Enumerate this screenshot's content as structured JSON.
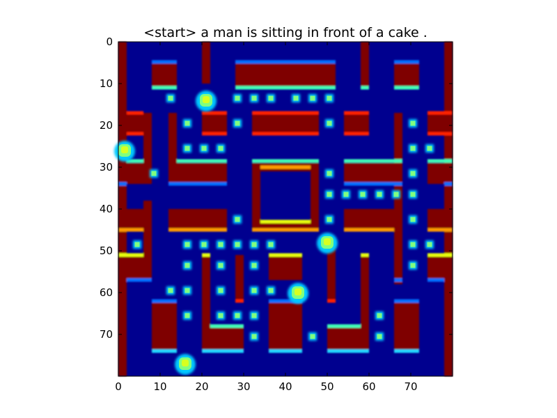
{
  "figure": {
    "title": "<start> a man is sitting in front of a cake ."
  },
  "chart_data": {
    "type": "heatmap",
    "title": "<start> a man is sitting in front of a cake .",
    "xlabel": "",
    "ylabel": "",
    "xlim": [
      0,
      80
    ],
    "ylim": [
      80,
      0
    ],
    "x_ticks": [
      "0",
      "10",
      "20",
      "30",
      "40",
      "50",
      "60",
      "70"
    ],
    "y_ticks": [
      "0",
      "10",
      "20",
      "30",
      "40",
      "50",
      "60",
      "70"
    ],
    "colormap": "jet",
    "grid": false,
    "colors": {
      "background": "#00008f",
      "wall": "#7f0000",
      "wall_edge_red": "#ff2000",
      "wall_edge_orange": "#ff9a00",
      "wall_edge_yellow": "#e8ff10",
      "wall_edge_cyan": "#20d8ff",
      "wall_edge_aqua": "#40ffb8",
      "wall_edge_blue": "#0070ff",
      "pellet": "#80ff80",
      "pellet_glow": "#00c8ff",
      "sprite": "#d8ff20"
    },
    "walls": [
      {
        "x": [
          0,
          2
        ],
        "y": [
          0,
          80
        ]
      },
      {
        "x": [
          78,
          80
        ],
        "y": [
          0,
          80
        ]
      },
      {
        "x": [
          8,
          14
        ],
        "y": [
          5,
          11
        ]
      },
      {
        "x": [
          20,
          22
        ],
        "y": [
          0,
          10
        ]
      },
      {
        "x": [
          28,
          52
        ],
        "y": [
          5,
          11
        ]
      },
      {
        "x": [
          58,
          60
        ],
        "y": [
          0,
          11
        ]
      },
      {
        "x": [
          66,
          72
        ],
        "y": [
          5,
          11
        ]
      },
      {
        "x": [
          2,
          6
        ],
        "y": [
          17,
          22
        ]
      },
      {
        "x": [
          20,
          26
        ],
        "y": [
          17,
          22
        ]
      },
      {
        "x": [
          32,
          48
        ],
        "y": [
          17,
          22
        ]
      },
      {
        "x": [
          54,
          60
        ],
        "y": [
          17,
          22
        ]
      },
      {
        "x": [
          66,
          68
        ],
        "y": [
          17,
          58
        ]
      },
      {
        "x": [
          74,
          78
        ],
        "y": [
          17,
          22
        ]
      },
      {
        "x": [
          6,
          8
        ],
        "y": [
          17,
          34
        ]
      },
      {
        "x": [
          2,
          6
        ],
        "y": [
          29,
          34
        ]
      },
      {
        "x": [
          12,
          14
        ],
        "y": [
          17,
          34
        ]
      },
      {
        "x": [
          14,
          26
        ],
        "y": [
          29,
          34
        ]
      },
      {
        "x": [
          32,
          48
        ],
        "y": [
          29,
          31
        ]
      },
      {
        "x": [
          32,
          34
        ],
        "y": [
          29,
          45
        ]
      },
      {
        "x": [
          46,
          48
        ],
        "y": [
          29,
          45
        ]
      },
      {
        "x": [
          32,
          48
        ],
        "y": [
          43,
          45
        ]
      },
      {
        "x": [
          54,
          68
        ],
        "y": [
          29,
          34
        ]
      },
      {
        "x": [
          74,
          78
        ],
        "y": [
          29,
          34
        ]
      },
      {
        "x": [
          6,
          8
        ],
        "y": [
          38,
          57
        ]
      },
      {
        "x": [
          2,
          6
        ],
        "y": [
          40,
          45
        ]
      },
      {
        "x": [
          12,
          26
        ],
        "y": [
          40,
          45
        ]
      },
      {
        "x": [
          54,
          66
        ],
        "y": [
          40,
          45
        ]
      },
      {
        "x": [
          74,
          78
        ],
        "y": [
          40,
          45
        ]
      },
      {
        "x": [
          2,
          6
        ],
        "y": [
          51,
          57
        ]
      },
      {
        "x": [
          20,
          22
        ],
        "y": [
          51,
          68
        ]
      },
      {
        "x": [
          28,
          30
        ],
        "y": [
          51,
          62
        ]
      },
      {
        "x": [
          36,
          44
        ],
        "y": [
          51,
          57
        ]
      },
      {
        "x": [
          50,
          52
        ],
        "y": [
          48,
          62
        ]
      },
      {
        "x": [
          58,
          60
        ],
        "y": [
          51,
          68
        ]
      },
      {
        "x": [
          74,
          78
        ],
        "y": [
          51,
          57
        ]
      },
      {
        "x": [
          8,
          14
        ],
        "y": [
          62,
          74
        ]
      },
      {
        "x": [
          20,
          30
        ],
        "y": [
          68,
          74
        ]
      },
      {
        "x": [
          36,
          44
        ],
        "y": [
          62,
          74
        ]
      },
      {
        "x": [
          50,
          60
        ],
        "y": [
          68,
          74
        ]
      },
      {
        "x": [
          66,
          72
        ],
        "y": [
          62,
          74
        ]
      }
    ],
    "edges": [
      {
        "x": [
          8,
          14
        ],
        "y": 4.8,
        "c": "wall_edge_blue"
      },
      {
        "x": [
          8,
          14
        ],
        "y": 11,
        "c": "wall_edge_aqua"
      },
      {
        "x": [
          28,
          52
        ],
        "y": 4.8,
        "c": "wall_edge_blue"
      },
      {
        "x": [
          28,
          52
        ],
        "y": 11,
        "c": "wall_edge_aqua"
      },
      {
        "x": [
          66,
          72
        ],
        "y": 4.8,
        "c": "wall_edge_blue"
      },
      {
        "x": [
          66,
          72
        ],
        "y": 11,
        "c": "wall_edge_aqua"
      },
      {
        "x": [
          58,
          60
        ],
        "y": 11,
        "c": "wall_edge_aqua"
      },
      {
        "x": [
          2,
          6
        ],
        "y": 17,
        "c": "wall_edge_red"
      },
      {
        "x": [
          2,
          6
        ],
        "y": 22,
        "c": "wall_edge_red"
      },
      {
        "x": [
          20,
          26
        ],
        "y": 17,
        "c": "wall_edge_red"
      },
      {
        "x": [
          20,
          26
        ],
        "y": 22,
        "c": "wall_edge_red"
      },
      {
        "x": [
          32,
          48
        ],
        "y": 17,
        "c": "wall_edge_red"
      },
      {
        "x": [
          32,
          48
        ],
        "y": 22,
        "c": "wall_edge_red"
      },
      {
        "x": [
          54,
          60
        ],
        "y": 17,
        "c": "wall_edge_red"
      },
      {
        "x": [
          54,
          60
        ],
        "y": 22,
        "c": "wall_edge_red"
      },
      {
        "x": [
          74,
          80
        ],
        "y": 17,
        "c": "wall_edge_red"
      },
      {
        "x": [
          74,
          80
        ],
        "y": 22,
        "c": "wall_edge_red"
      },
      {
        "x": [
          2,
          6
        ],
        "y": 28.5,
        "c": "wall_edge_aqua"
      },
      {
        "x": [
          14,
          26
        ],
        "y": 28.5,
        "c": "wall_edge_aqua"
      },
      {
        "x": [
          32,
          48
        ],
        "y": 28.5,
        "c": "wall_edge_aqua"
      },
      {
        "x": [
          34,
          46
        ],
        "y": 30,
        "c": "wall_edge_orange"
      },
      {
        "x": [
          54,
          68
        ],
        "y": 28.5,
        "c": "wall_edge_aqua"
      },
      {
        "x": [
          74,
          80
        ],
        "y": 28.5,
        "c": "wall_edge_aqua"
      },
      {
        "x": [
          0,
          2
        ],
        "y": 34,
        "c": "wall_edge_blue"
      },
      {
        "x": [
          12,
          26
        ],
        "y": 34,
        "c": "wall_edge_blue"
      },
      {
        "x": [
          54,
          68
        ],
        "y": 34,
        "c": "wall_edge_blue"
      },
      {
        "x": [
          78,
          80
        ],
        "y": 34,
        "c": "wall_edge_blue"
      },
      {
        "x": [
          34,
          46
        ],
        "y": 43,
        "c": "wall_edge_yellow"
      },
      {
        "x": [
          0,
          6
        ],
        "y": 45,
        "c": "wall_edge_orange"
      },
      {
        "x": [
          12,
          26
        ],
        "y": 45,
        "c": "wall_edge_orange"
      },
      {
        "x": [
          32,
          48
        ],
        "y": 45,
        "c": "wall_edge_orange"
      },
      {
        "x": [
          54,
          66
        ],
        "y": 45,
        "c": "wall_edge_orange"
      },
      {
        "x": [
          74,
          80
        ],
        "y": 45,
        "c": "wall_edge_orange"
      },
      {
        "x": [
          0,
          6
        ],
        "y": 51,
        "c": "wall_edge_yellow"
      },
      {
        "x": [
          20,
          22
        ],
        "y": 51,
        "c": "wall_edge_yellow"
      },
      {
        "x": [
          36,
          44
        ],
        "y": 51,
        "c": "wall_edge_yellow"
      },
      {
        "x": [
          58,
          60
        ],
        "y": 51,
        "c": "wall_edge_yellow"
      },
      {
        "x": [
          74,
          80
        ],
        "y": 51,
        "c": "wall_edge_yellow"
      },
      {
        "x": [
          2,
          6
        ],
        "y": 57,
        "c": "wall_edge_blue"
      },
      {
        "x": [
          6,
          8
        ],
        "y": 57,
        "c": "wall_edge_blue"
      },
      {
        "x": [
          66,
          68
        ],
        "y": 57,
        "c": "wall_edge_blue"
      },
      {
        "x": [
          74,
          78
        ],
        "y": 57,
        "c": "wall_edge_blue"
      },
      {
        "x": [
          28,
          30
        ],
        "y": 62,
        "c": "wall_edge_red"
      },
      {
        "x": [
          50,
          52
        ],
        "y": 62,
        "c": "wall_edge_red"
      },
      {
        "x": [
          8,
          14
        ],
        "y": 62,
        "c": "wall_edge_blue"
      },
      {
        "x": [
          36,
          44
        ],
        "y": 62,
        "c": "wall_edge_blue"
      },
      {
        "x": [
          66,
          72
        ],
        "y": 62,
        "c": "wall_edge_blue"
      },
      {
        "x": [
          22,
          30
        ],
        "y": 68,
        "c": "wall_edge_aqua"
      },
      {
        "x": [
          50,
          58
        ],
        "y": 68,
        "c": "wall_edge_aqua"
      },
      {
        "x": [
          8,
          14
        ],
        "y": 74,
        "c": "wall_edge_cyan"
      },
      {
        "x": [
          20,
          30
        ],
        "y": 74,
        "c": "wall_edge_cyan"
      },
      {
        "x": [
          36,
          44
        ],
        "y": 74,
        "c": "wall_edge_cyan"
      },
      {
        "x": [
          50,
          60
        ],
        "y": 74,
        "c": "wall_edge_cyan"
      },
      {
        "x": [
          66,
          72
        ],
        "y": 74,
        "c": "wall_edge_cyan"
      }
    ],
    "pellets": [
      [
        12.5,
        13.5
      ],
      [
        28.5,
        13.5
      ],
      [
        32.5,
        13.5
      ],
      [
        36.5,
        13.5
      ],
      [
        42.5,
        13.5
      ],
      [
        46.5,
        13.5
      ],
      [
        50.5,
        13.5
      ],
      [
        16.5,
        19.5
      ],
      [
        28.5,
        19.5
      ],
      [
        50.5,
        19.5
      ],
      [
        70.5,
        19.5
      ],
      [
        16.5,
        25.5
      ],
      [
        20.5,
        25.5
      ],
      [
        24.5,
        25.5
      ],
      [
        70.5,
        25.5
      ],
      [
        74.5,
        25.5
      ],
      [
        8.5,
        31.5
      ],
      [
        50.5,
        31.5
      ],
      [
        70.5,
        31.5
      ],
      [
        50.5,
        36.5
      ],
      [
        54.5,
        36.5
      ],
      [
        58.5,
        36.5
      ],
      [
        62.5,
        36.5
      ],
      [
        66.5,
        36.5
      ],
      [
        70.5,
        36.5
      ],
      [
        28.5,
        42.5
      ],
      [
        50.5,
        42.5
      ],
      [
        70.5,
        42.5
      ],
      [
        4.5,
        48.5
      ],
      [
        16.5,
        48.5
      ],
      [
        20.5,
        48.5
      ],
      [
        24.5,
        48.5
      ],
      [
        28.5,
        48.5
      ],
      [
        32.5,
        48.5
      ],
      [
        36.5,
        48.5
      ],
      [
        70.5,
        48.5
      ],
      [
        74.5,
        48.5
      ],
      [
        16.5,
        53.5
      ],
      [
        24.5,
        53.5
      ],
      [
        32.5,
        53.5
      ],
      [
        70.5,
        53.5
      ],
      [
        12.5,
        59.5
      ],
      [
        16.5,
        59.5
      ],
      [
        24.5,
        59.5
      ],
      [
        32.5,
        59.5
      ],
      [
        36.5,
        59.5
      ],
      [
        16.5,
        65.5
      ],
      [
        24.5,
        65.5
      ],
      [
        28.5,
        65.5
      ],
      [
        32.5,
        65.5
      ],
      [
        62.5,
        65.5
      ],
      [
        32.5,
        70.5
      ],
      [
        46.5,
        70.5
      ],
      [
        62.5,
        70.5
      ]
    ],
    "sprites": [
      {
        "name": "ghost-upper",
        "x": 21,
        "y": 14
      },
      {
        "name": "player-left",
        "x": 1.5,
        "y": 26
      },
      {
        "name": "ghost-middle",
        "x": 50,
        "y": 48
      },
      {
        "name": "ghost-lower",
        "x": 43,
        "y": 60
      },
      {
        "name": "player-bottom",
        "x": 16,
        "y": 77
      }
    ]
  }
}
